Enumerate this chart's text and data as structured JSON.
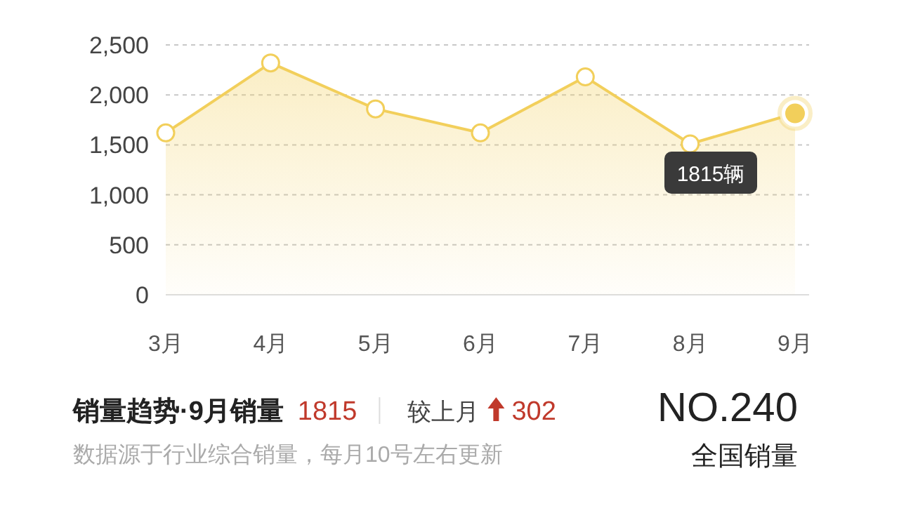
{
  "chart_data": {
    "type": "area",
    "categories": [
      "3月",
      "4月",
      "5月",
      "6月",
      "7月",
      "8月",
      "9月"
    ],
    "series": [
      {
        "color": "#f2cf5b",
        "values": [
          1620,
          2320,
          1860,
          1620,
          2180,
          1510,
          1815
        ]
      }
    ],
    "ylim": [
      0,
      2500
    ],
    "yticks": [
      0,
      {
        "value": 500,
        "label": "500"
      },
      {
        "value": 1000,
        "label": "1,000"
      },
      {
        "value": 1500,
        "label": "1,500"
      },
      {
        "value": 2000,
        "label": "2,000"
      },
      {
        "value": 2500,
        "label": "2,500"
      }
    ],
    "grid": "y",
    "marker": "circle",
    "line_style": "solid",
    "title": "销量趋势·9月销量",
    "annotations": [
      "1815辆",
      "1815",
      "较上月",
      "302",
      "数据源于行业综合销量，每月10号左右更新",
      "NO.240",
      "全国销量"
    ]
  }
}
